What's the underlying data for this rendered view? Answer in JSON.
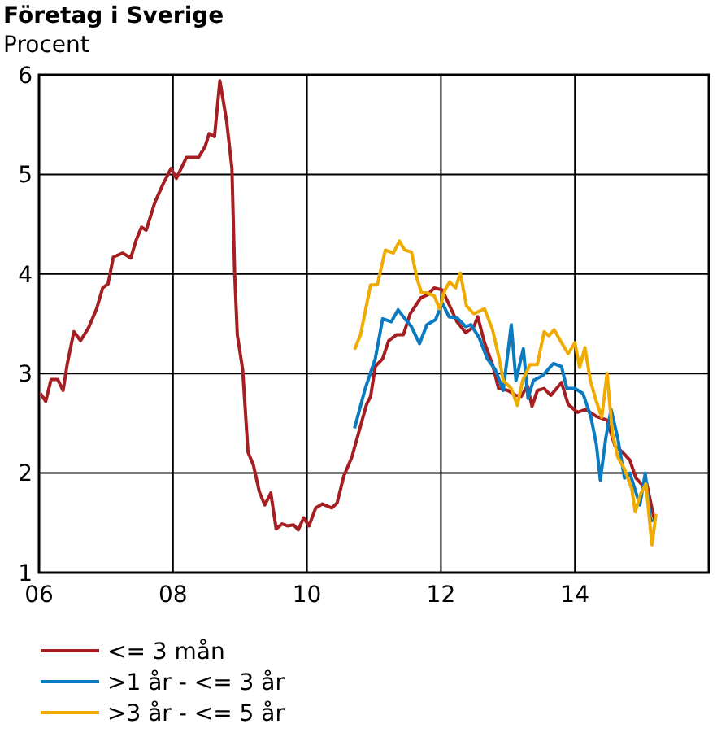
{
  "chart_data": {
    "type": "line",
    "title": "Företag i Sverige",
    "ylabel": "Procent",
    "xlim": [
      2006,
      2016
    ],
    "xticks": [
      {
        "value": 2006,
        "label": "06"
      },
      {
        "value": 2008,
        "label": "08"
      },
      {
        "value": 2010,
        "label": "10"
      },
      {
        "value": 2012,
        "label": "12"
      },
      {
        "value": 2014,
        "label": "14"
      },
      {
        "value": 2016,
        "label": null
      }
    ],
    "ylim": [
      1,
      6
    ],
    "yticks": [
      1,
      2,
      3,
      4,
      5,
      6
    ],
    "grid": true,
    "legend": "bottom",
    "line_style": "solid",
    "marker": "none",
    "series": [
      {
        "name": "<= 3 mån",
        "color": "#a51e22",
        "x": [
          2006.02,
          2006.1,
          2006.18,
          2006.28,
          2006.36,
          2006.42,
          2006.52,
          2006.62,
          2006.74,
          2006.86,
          2006.95,
          2007.03,
          2007.11,
          2007.25,
          2007.37,
          2007.45,
          2007.53,
          2007.6,
          2007.73,
          2007.85,
          2007.97,
          2008.05,
          2008.2,
          2008.38,
          2008.48,
          2008.54,
          2008.62,
          2008.7,
          2008.8,
          2008.88,
          2008.92,
          2008.96,
          2009.04,
          2009.12,
          2009.2,
          2009.29,
          2009.37,
          2009.46,
          2009.54,
          2009.63,
          2009.71,
          2009.8,
          2009.87,
          2009.95,
          2010.03,
          2010.13,
          2010.23,
          2010.37,
          2010.45,
          2010.55,
          2010.67,
          2010.79,
          2010.89,
          2010.95,
          2011.02,
          2011.13,
          2011.22,
          2011.34,
          2011.44,
          2011.54,
          2011.7,
          2011.8,
          2011.9,
          2012.02,
          2012.13,
          2012.24,
          2012.37,
          2012.49,
          2012.55,
          2012.65,
          2012.77,
          2012.86,
          2013.0,
          2013.12,
          2013.2,
          2013.29,
          2013.36,
          2013.44,
          2013.54,
          2013.64,
          2013.8,
          2013.9,
          2014.04,
          2014.16,
          2014.32,
          2014.48,
          2014.6,
          2014.71,
          2014.82,
          2014.91,
          2015.02,
          2015.07,
          2015.18,
          2015.2
        ],
        "values": [
          2.8,
          2.72,
          2.94,
          2.94,
          2.83,
          3.09,
          3.42,
          3.33,
          3.46,
          3.65,
          3.86,
          3.9,
          4.17,
          4.21,
          4.16,
          4.34,
          4.47,
          4.44,
          4.72,
          4.9,
          5.06,
          4.96,
          5.17,
          5.17,
          5.28,
          5.41,
          5.38,
          5.94,
          5.54,
          5.06,
          4.02,
          3.39,
          3.04,
          2.21,
          2.08,
          1.81,
          1.68,
          1.8,
          1.44,
          1.49,
          1.47,
          1.48,
          1.43,
          1.55,
          1.47,
          1.65,
          1.69,
          1.65,
          1.7,
          1.97,
          2.16,
          2.45,
          2.69,
          2.77,
          3.07,
          3.15,
          3.33,
          3.39,
          3.39,
          3.6,
          3.76,
          3.79,
          3.86,
          3.84,
          3.68,
          3.52,
          3.41,
          3.47,
          3.57,
          3.31,
          3.09,
          2.85,
          2.83,
          2.78,
          2.77,
          2.88,
          2.67,
          2.83,
          2.85,
          2.78,
          2.91,
          2.69,
          2.61,
          2.64,
          2.57,
          2.53,
          2.27,
          2.21,
          2.13,
          1.95,
          1.87,
          1.9,
          1.55,
          1.55
        ]
      },
      {
        "name": ">1 år - <= 3 år",
        "color": "#0a7bc1",
        "x": [
          2010.71,
          2010.87,
          2011.02,
          2011.13,
          2011.26,
          2011.36,
          2011.44,
          2011.56,
          2011.68,
          2011.79,
          2011.92,
          2012.02,
          2012.12,
          2012.24,
          2012.37,
          2012.45,
          2012.57,
          2012.69,
          2012.81,
          2012.93,
          2013.05,
          2013.12,
          2013.23,
          2013.3,
          2013.38,
          2013.52,
          2013.68,
          2013.8,
          2013.88,
          2014.0,
          2014.12,
          2014.24,
          2014.32,
          2014.38,
          2014.46,
          2014.54,
          2014.64,
          2014.74,
          2014.82,
          2014.97,
          2015.05,
          2015.13,
          2015.19
        ],
        "values": [
          2.45,
          2.85,
          3.15,
          3.55,
          3.52,
          3.64,
          3.57,
          3.47,
          3.3,
          3.49,
          3.54,
          3.71,
          3.57,
          3.56,
          3.47,
          3.49,
          3.36,
          3.15,
          3.04,
          2.83,
          3.49,
          2.93,
          3.25,
          2.75,
          2.93,
          2.98,
          3.1,
          3.07,
          2.85,
          2.85,
          2.8,
          2.56,
          2.29,
          1.93,
          2.35,
          2.64,
          2.35,
          1.95,
          2.0,
          1.68,
          2.0,
          1.52,
          1.53
        ]
      },
      {
        "name": ">3 år - <= 5 år",
        "color": "#f0ab00",
        "x": [
          2010.71,
          2010.8,
          2010.95,
          2011.05,
          2011.17,
          2011.29,
          2011.38,
          2011.46,
          2011.56,
          2011.64,
          2011.71,
          2011.79,
          2011.9,
          2011.98,
          2012.06,
          2012.13,
          2012.22,
          2012.29,
          2012.38,
          2012.49,
          2012.65,
          2012.77,
          2012.87,
          2012.93,
          2013.05,
          2013.14,
          2013.22,
          2013.33,
          2013.44,
          2013.54,
          2013.61,
          2013.69,
          2013.8,
          2013.9,
          2014.0,
          2014.07,
          2014.15,
          2014.23,
          2014.32,
          2014.4,
          2014.48,
          2014.56,
          2014.64,
          2014.74,
          2014.85,
          2014.9,
          2014.98,
          2015.06,
          2015.15,
          2015.21
        ],
        "values": [
          3.24,
          3.39,
          3.89,
          3.89,
          4.24,
          4.21,
          4.33,
          4.24,
          4.22,
          3.96,
          3.81,
          3.81,
          3.78,
          3.65,
          3.84,
          3.92,
          3.86,
          4.01,
          3.68,
          3.6,
          3.65,
          3.44,
          3.15,
          2.93,
          2.85,
          2.68,
          2.93,
          3.09,
          3.09,
          3.42,
          3.38,
          3.44,
          3.31,
          3.2,
          3.31,
          3.06,
          3.26,
          2.93,
          2.72,
          2.56,
          3.0,
          2.4,
          2.16,
          2.04,
          1.84,
          1.61,
          1.79,
          1.89,
          1.28,
          1.59
        ]
      }
    ]
  }
}
